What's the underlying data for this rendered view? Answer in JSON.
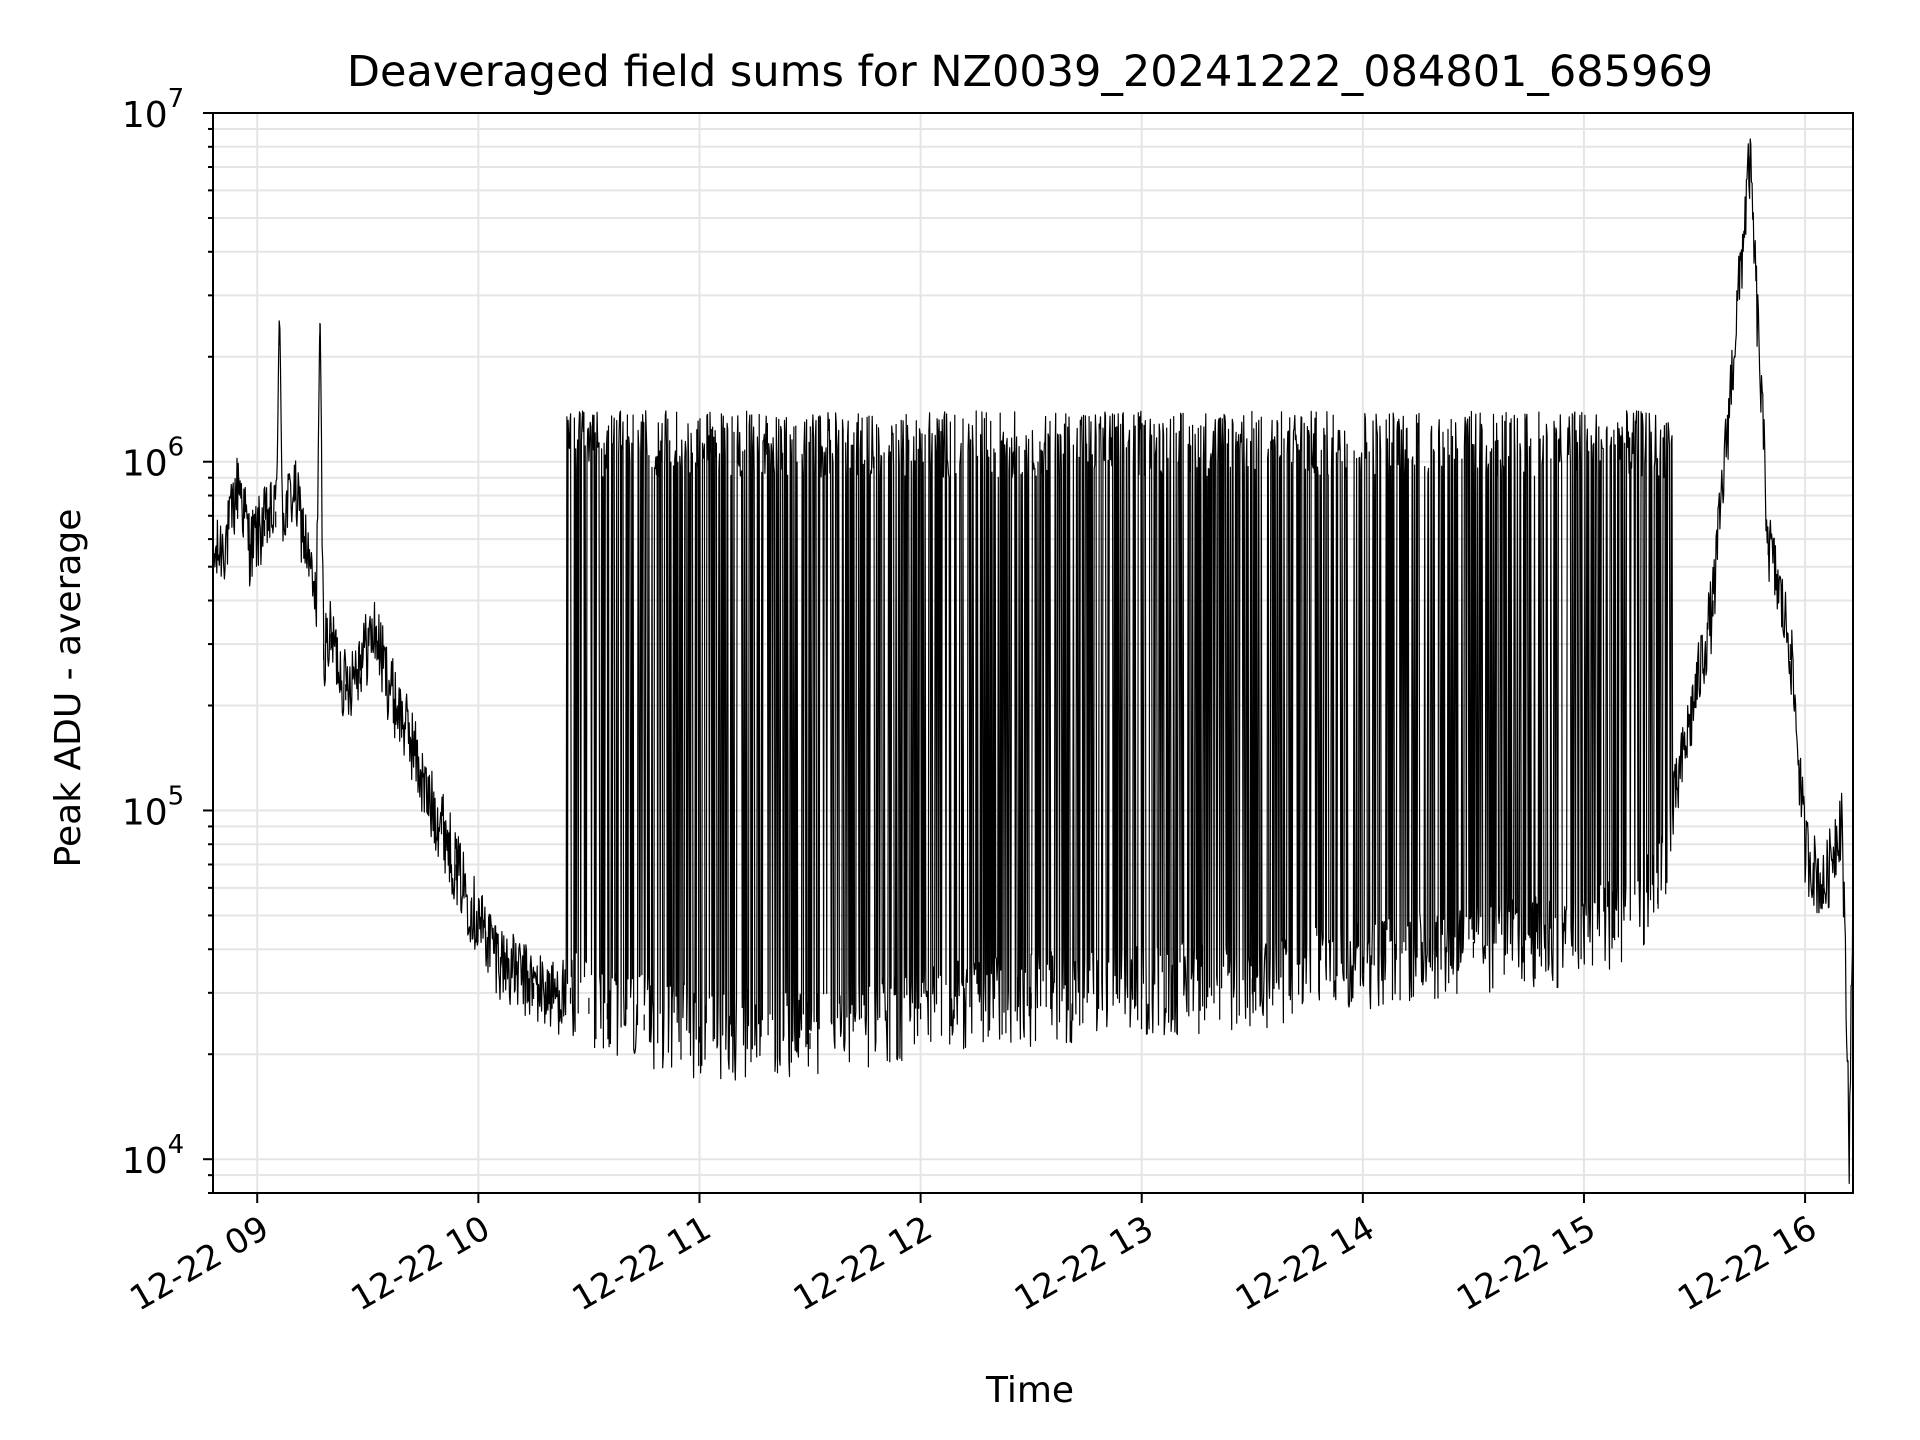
{
  "chart_data": {
    "type": "line",
    "title": "Deaveraged field sums for NZ0039_20241222_084801_685969",
    "xlabel": "Time",
    "ylabel": "Peak ADU - average",
    "yscale": "log",
    "ylim": [
      8000,
      10000000
    ],
    "xlim": [
      "2024-12-22 08:48",
      "2024-12-22 16:13"
    ],
    "grid": true,
    "line_color": "#000000",
    "grid_color": "#e5e5e5",
    "x_ticks": [
      {
        "label": "12-22 09",
        "value": "2024-12-22 09:00"
      },
      {
        "label": "12-22 10",
        "value": "2024-12-22 10:00"
      },
      {
        "label": "12-22 11",
        "value": "2024-12-22 11:00"
      },
      {
        "label": "12-22 12",
        "value": "2024-12-22 12:00"
      },
      {
        "label": "12-22 13",
        "value": "2024-12-22 13:00"
      },
      {
        "label": "12-22 14",
        "value": "2024-12-22 14:00"
      },
      {
        "label": "12-22 15",
        "value": "2024-12-22 15:00"
      },
      {
        "label": "12-22 16",
        "value": "2024-12-22 16:00"
      }
    ],
    "y_ticks": [
      {
        "base": "10",
        "exp": "4",
        "value": 10000
      },
      {
        "base": "10",
        "exp": "5",
        "value": 100000
      },
      {
        "base": "10",
        "exp": "6",
        "value": 1000000
      },
      {
        "base": "10",
        "exp": "7",
        "value": 10000000
      }
    ],
    "series": [
      {
        "points": [
          [
            "2024-12-22 08:48",
            520000
          ],
          [
            "2024-12-22 08:52",
            620000
          ],
          [
            "2024-12-22 08:55",
            900000
          ],
          [
            "2024-12-22 08:58",
            580000
          ],
          [
            "2024-12-22 09:02",
            680000
          ],
          [
            "2024-12-22 09:05",
            720000
          ],
          [
            "2024-12-22 09:06",
            2400000
          ],
          [
            "2024-12-22 09:07",
            700000
          ],
          [
            "2024-12-22 09:10",
            850000
          ],
          [
            "2024-12-22 09:13",
            600000
          ],
          [
            "2024-12-22 09:16",
            380000
          ],
          [
            "2024-12-22 09:17",
            2500000
          ],
          [
            "2024-12-22 09:18",
            300000
          ],
          [
            "2024-12-22 09:20",
            320000
          ],
          [
            "2024-12-22 09:24",
            230000
          ],
          [
            "2024-12-22 09:28",
            280000
          ],
          [
            "2024-12-22 09:32",
            330000
          ],
          [
            "2024-12-22 09:35",
            250000
          ],
          [
            "2024-12-22 09:38",
            200000
          ],
          [
            "2024-12-22 09:42",
            160000
          ],
          [
            "2024-12-22 09:46",
            110000
          ],
          [
            "2024-12-22 09:50",
            95000
          ],
          [
            "2024-12-22 09:54",
            70000
          ],
          [
            "2024-12-22 09:58",
            55000
          ],
          [
            "2024-12-22 10:02",
            45000
          ],
          [
            "2024-12-22 10:06",
            38000
          ],
          [
            "2024-12-22 10:10",
            35000
          ],
          [
            "2024-12-22 10:15",
            32000
          ],
          [
            "2024-12-22 10:20",
            30000
          ],
          [
            "2024-12-22 10:25",
            31000
          ],
          [
            "2024-12-22 10:30",
            29000
          ],
          [
            "2024-12-22 10:35",
            28000
          ],
          [
            "2024-12-22 10:40",
            27000
          ],
          [
            "2024-12-22 10:45",
            26000
          ],
          [
            "2024-12-22 10:50",
            25000
          ],
          [
            "2024-12-22 10:55",
            25000
          ],
          [
            "2024-12-22 11:00",
            24000
          ],
          [
            "2024-12-22 11:30",
            23000
          ],
          [
            "2024-12-22 12:00",
            28000
          ],
          [
            "2024-12-22 12:30",
            30000
          ],
          [
            "2024-12-22 13:00",
            32000
          ],
          [
            "2024-12-22 13:30",
            33000
          ],
          [
            "2024-12-22 14:00",
            38000
          ],
          [
            "2024-12-22 14:30",
            42000
          ],
          [
            "2024-12-22 15:00",
            45000
          ],
          [
            "2024-12-22 15:20",
            60000
          ],
          [
            "2024-12-22 15:35",
            400000
          ],
          [
            "2024-12-22 15:45",
            7500000
          ],
          [
            "2024-12-22 15:50",
            600000
          ],
          [
            "2024-12-22 15:56",
            300000
          ],
          [
            "2024-12-22 16:00",
            80000
          ],
          [
            "2024-12-22 16:05",
            60000
          ],
          [
            "2024-12-22 16:10",
            100000
          ],
          [
            "2024-12-22 16:12",
            11000
          ],
          [
            "2024-12-22 16:13",
            70000
          ]
        ]
      }
    ]
  }
}
